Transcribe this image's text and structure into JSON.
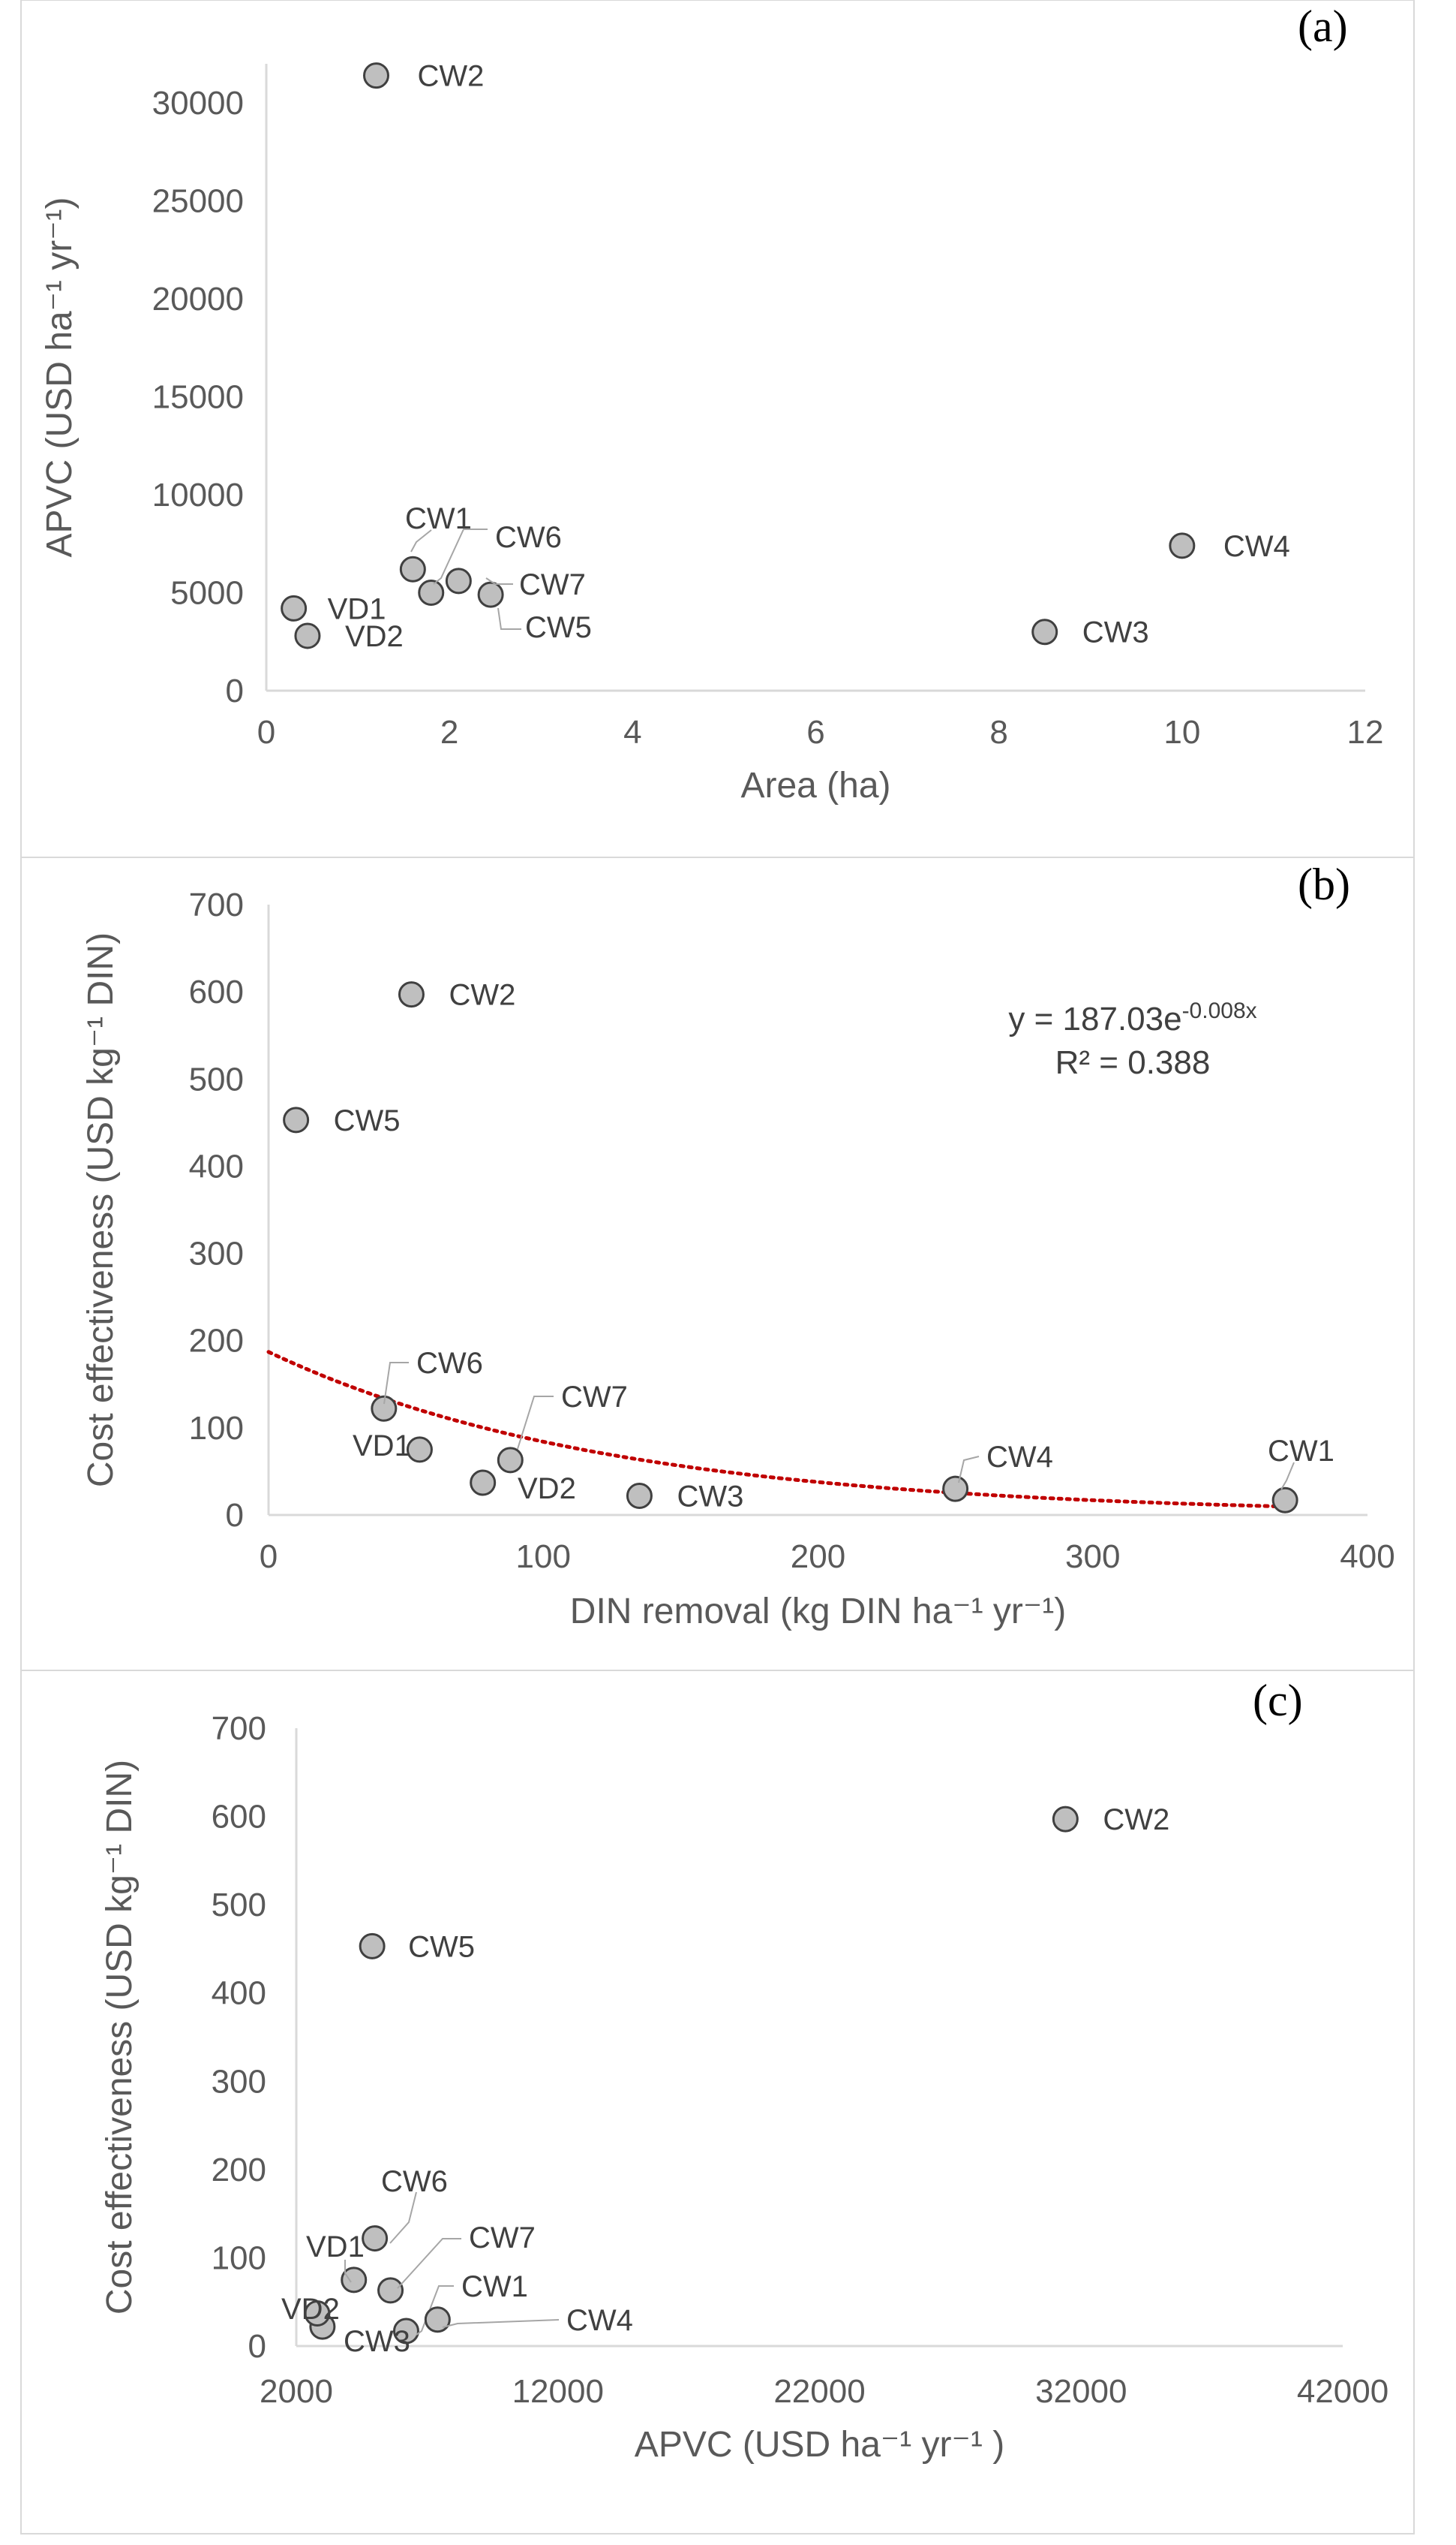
{
  "chart_data": [
    {
      "type": "scatter",
      "panel_label": "(a)",
      "xlabel": "Area (ha)",
      "ylabel": "APVC (USD ha⁻¹ yr⁻¹)",
      "xlim": [
        0,
        12
      ],
      "ylim": [
        0,
        32000
      ],
      "xticks": [
        0,
        2,
        4,
        6,
        8,
        10,
        12
      ],
      "yticks": [
        0,
        5000,
        10000,
        15000,
        20000,
        25000,
        30000
      ],
      "grid": false,
      "points": [
        {
          "label": "CW1",
          "x": 1.6,
          "y": 6200
        },
        {
          "label": "CW2",
          "x": 1.2,
          "y": 31400
        },
        {
          "label": "CW3",
          "x": 8.5,
          "y": 3000
        },
        {
          "label": "CW4",
          "x": 10.0,
          "y": 7400
        },
        {
          "label": "CW5",
          "x": 2.45,
          "y": 4900
        },
        {
          "label": "CW6",
          "x": 1.8,
          "y": 5000
        },
        {
          "label": "CW7",
          "x": 2.1,
          "y": 5600
        },
        {
          "label": "VD1",
          "x": 0.3,
          "y": 4200
        },
        {
          "label": "VD2",
          "x": 0.45,
          "y": 2800
        }
      ]
    },
    {
      "type": "scatter",
      "panel_label": "(b)",
      "xlabel": "DIN removal (kg DIN ha⁻¹ yr⁻¹)",
      "ylabel": "Cost effectiveness (USD kg⁻¹ DIN)",
      "xlim": [
        0,
        400
      ],
      "ylim": [
        0,
        700
      ],
      "xticks": [
        0,
        100,
        200,
        300,
        400
      ],
      "yticks": [
        0,
        100,
        200,
        300,
        400,
        500,
        600,
        700
      ],
      "grid": false,
      "points": [
        {
          "label": "CW1",
          "x": 370,
          "y": 17
        },
        {
          "label": "CW2",
          "x": 52,
          "y": 597
        },
        {
          "label": "CW3",
          "x": 135,
          "y": 22
        },
        {
          "label": "CW4",
          "x": 250,
          "y": 30
        },
        {
          "label": "CW5",
          "x": 10,
          "y": 453
        },
        {
          "label": "CW6",
          "x": 42,
          "y": 122
        },
        {
          "label": "CW7",
          "x": 88,
          "y": 63
        },
        {
          "label": "VD1",
          "x": 55,
          "y": 75
        },
        {
          "label": "VD2",
          "x": 78,
          "y": 37
        }
      ],
      "trendline": {
        "type": "exponential",
        "a": 187.03,
        "b": -0.008,
        "x_range": [
          0,
          370
        ],
        "color": "#c00000"
      },
      "equation_base": "y = 187.03e",
      "equation_exponent": "-0.008x",
      "r_squared": "R² = 0.388"
    },
    {
      "type": "scatter",
      "panel_label": "(c)",
      "xlabel": "APVC (USD ha⁻¹  yr⁻¹ )",
      "ylabel": "Cost effectiveness (USD kg⁻¹ DIN)",
      "xlim": [
        2000,
        42000
      ],
      "ylim": [
        0,
        700
      ],
      "xticks": [
        2000,
        12000,
        22000,
        32000,
        42000
      ],
      "yticks": [
        0,
        100,
        200,
        300,
        400,
        500,
        600,
        700
      ],
      "grid": false,
      "points": [
        {
          "label": "CW1",
          "x": 6200,
          "y": 17
        },
        {
          "label": "CW2",
          "x": 31400,
          "y": 597
        },
        {
          "label": "CW3",
          "x": 3000,
          "y": 22
        },
        {
          "label": "CW4",
          "x": 7400,
          "y": 30
        },
        {
          "label": "CW5",
          "x": 4900,
          "y": 453
        },
        {
          "label": "CW6",
          "x": 5000,
          "y": 122
        },
        {
          "label": "CW7",
          "x": 5600,
          "y": 63
        },
        {
          "label": "VD1",
          "x": 4200,
          "y": 75
        },
        {
          "label": "VD2",
          "x": 2800,
          "y": 37
        }
      ]
    }
  ],
  "colors": {
    "marker_fill": "#bfbfbf",
    "marker_stroke": "#404040",
    "axis": "#d9d9d9",
    "text": "#595959",
    "trend": "#c00000",
    "leader": "#a6a6a6"
  }
}
